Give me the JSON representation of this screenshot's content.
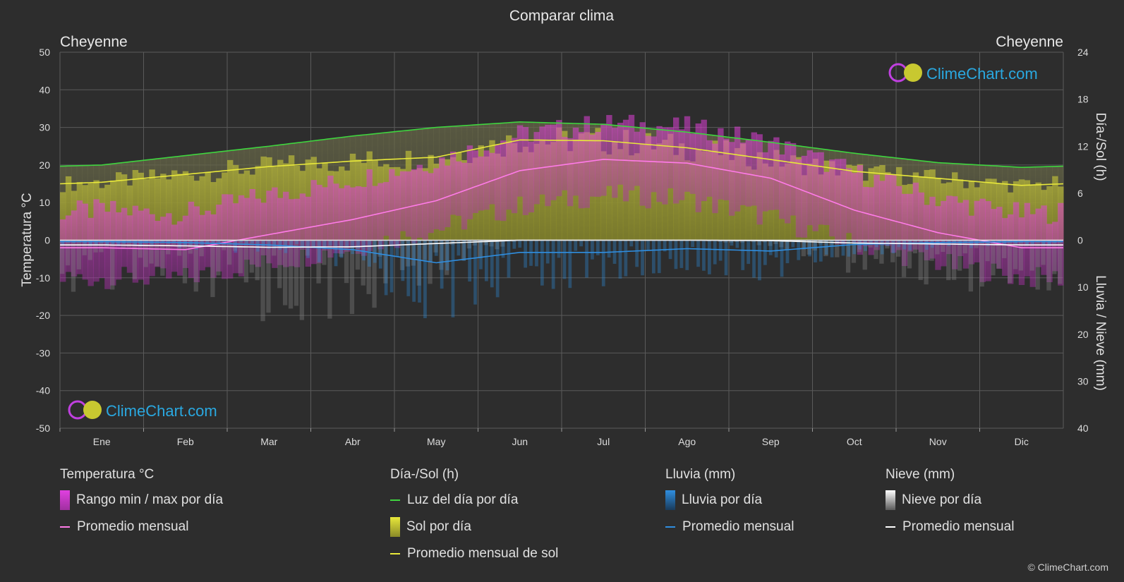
{
  "title": "Comparar clima",
  "location_left": "Cheyenne",
  "location_right": "Cheyenne",
  "logo_text": "ClimeChart.com",
  "copyright": "© ClimeChart.com",
  "axes": {
    "left_label": "Temperatura °C",
    "right_top_label": "Día-/Sol (h)",
    "right_bottom_label": "Lluvia / Nieve (mm)",
    "left_ticks": [
      50,
      40,
      30,
      20,
      10,
      0,
      -10,
      -20,
      -30,
      -40,
      -50
    ],
    "right_top_ticks": [
      24,
      18,
      12,
      6,
      0
    ],
    "right_bottom_ticks": [
      10,
      20,
      30,
      40
    ]
  },
  "legend": {
    "temperature": {
      "title": "Temperatura °C",
      "range_label": "Rango min / max por día",
      "avg_label": "Promedio mensual"
    },
    "sun": {
      "title": "Día-/Sol (h)",
      "daylight_label": "Luz del día por día",
      "sun_label": "Sol por día",
      "sun_avg_label": "Promedio mensual de sol"
    },
    "rain": {
      "title": "Lluvia (mm)",
      "rain_label": "Lluvia por día",
      "avg_label": "Promedio mensual"
    },
    "snow": {
      "title": "Nieve (mm)",
      "snow_label": "Nieve por día",
      "avg_label": "Promedio mensual"
    }
  },
  "colors": {
    "background": "#2d2d2d",
    "grid": "#5a5a5a",
    "temp_range": "#d63fd0",
    "temp_avg": "#ff7be8",
    "daylight": "#3fd43f",
    "sunshine": "#a8a82e",
    "sun_avg": "#e8e83a",
    "rain": "#2f8ee0",
    "snow": "#d0d0d0",
    "accent_logo": "#2aa8e0"
  },
  "chart_data": {
    "type": "area",
    "categories": [
      "Ene",
      "Feb",
      "Mar",
      "Abr",
      "May",
      "Jun",
      "Jul",
      "Ago",
      "Sep",
      "Oct",
      "Nov",
      "Dic"
    ],
    "ylim_temperature": [
      -50,
      50
    ],
    "ylim_hours": [
      0,
      24
    ],
    "ylim_precip_mm": [
      0,
      40
    ],
    "series": [
      {
        "name": "Luz del día por día",
        "unit": "h",
        "values": [
          9.6,
          10.8,
          12.0,
          13.3,
          14.4,
          15.1,
          14.8,
          13.8,
          12.5,
          11.1,
          9.9,
          9.3
        ]
      },
      {
        "name": "Promedio mensual de sol",
        "unit": "h",
        "values": [
          7.4,
          8.4,
          9.4,
          10.1,
          10.6,
          12.8,
          12.7,
          11.8,
          10.3,
          8.8,
          7.9,
          7.0
        ]
      },
      {
        "name": "Promedio mensual",
        "kind": "temperature",
        "unit": "°C",
        "values": [
          -2.0,
          -2.5,
          1.5,
          5.5,
          10.5,
          18.5,
          21.5,
          20.5,
          16.5,
          8.0,
          2.0,
          -2.0
        ]
      },
      {
        "name": "Promedio mensual",
        "kind": "rain",
        "unit": "mm",
        "values": [
          0.3,
          0.5,
          1.0,
          2.0,
          4.8,
          2.6,
          2.6,
          1.8,
          2.3,
          0.9,
          0.5,
          0.3
        ]
      },
      {
        "name": "Promedio mensual",
        "kind": "snow",
        "unit": "mm",
        "values": [
          1.0,
          1.2,
          1.5,
          1.4,
          0.7,
          0.0,
          0.0,
          0.0,
          0.1,
          0.6,
          0.8,
          1.0
        ]
      }
    ],
    "temp_range_approx": {
      "max": [
        8,
        7,
        12,
        16,
        21,
        28,
        31,
        30,
        26,
        18,
        11,
        7
      ],
      "min": [
        -10,
        -10,
        -6,
        -2,
        3,
        9,
        12,
        11,
        6,
        -1,
        -6,
        -10
      ]
    }
  }
}
